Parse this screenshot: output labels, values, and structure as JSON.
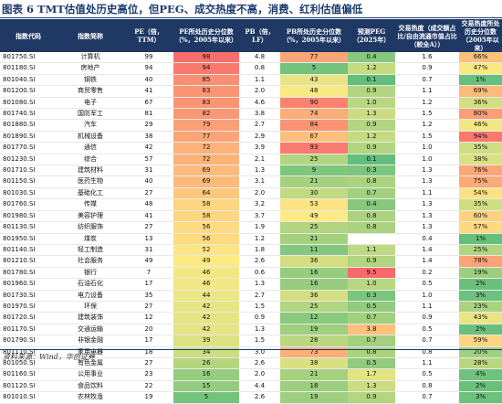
{
  "title": "图表 6 TMT估值处历史高位，但PEG、成交热度不高，消费、红利估值偏低",
  "source": "资料来源：Wind，华创证券",
  "headers": [
    "指数代码",
    "指数简称",
    "PE（倍，TTM）",
    "PE所处历史分位数（%，2005年以来）",
    "PB（倍，LF）",
    "PB所处历史分位数（%，2005年以来）",
    "预测PEG（2025年）",
    "交易热度（成交额占比/自由流通市值占比（較全A））",
    "交易热度所处历史分位数（2005年以来）"
  ],
  "rows": [
    {
      "code": "801750.SI",
      "name": "计算机",
      "pe": "99",
      "pe_pct": "98",
      "pb": "4.8",
      "pb_pct": "77",
      "peg": "0.4",
      "heat": "1.6",
      "heat_pct": "66%"
    },
    {
      "code": "801180.SI",
      "name": "房地产",
      "pe": "94",
      "pe_pct": "94",
      "pb": "0.8",
      "pb_pct": "5",
      "peg": "1.2",
      "heat": "0.9",
      "heat_pct": "47%"
    },
    {
      "code": "801040.SI",
      "name": "钢铁",
      "pe": "40",
      "pe_pct": "85",
      "pb": "1.1",
      "pb_pct": "43",
      "peg": "0.1",
      "heat": "0.7",
      "heat_pct": "1%"
    },
    {
      "code": "801200.SI",
      "name": "商贸零售",
      "pe": "41",
      "pe_pct": "83",
      "pb": "2.0",
      "pb_pct": "48",
      "peg": "0.9",
      "heat": "1.1",
      "heat_pct": "69%"
    },
    {
      "code": "801080.SI",
      "name": "电子",
      "pe": "67",
      "pe_pct": "83",
      "pb": "4.6",
      "pb_pct": "90",
      "peg": "1.0",
      "heat": "1.2",
      "heat_pct": "36%"
    },
    {
      "code": "801740.SI",
      "name": "国防军工",
      "pe": "81",
      "pe_pct": "82",
      "pb": "3.8",
      "pb_pct": "74",
      "peg": "1.3",
      "heat": "1.5",
      "heat_pct": "80%"
    },
    {
      "code": "801880.SI",
      "name": "汽车",
      "pe": "29",
      "pe_pct": "79",
      "pb": "2.7",
      "pb_pct": "84",
      "peg": "0.9",
      "heat": "1.2",
      "heat_pct": "46%"
    },
    {
      "code": "801890.SI",
      "name": "机械设备",
      "pe": "38",
      "pe_pct": "77",
      "pb": "2.9",
      "pb_pct": "67",
      "peg": "1.2",
      "heat": "1.5",
      "heat_pct": "94%"
    },
    {
      "code": "801770.SI",
      "name": "通信",
      "pe": "42",
      "pe_pct": "72",
      "pb": "3.9",
      "pb_pct": "93",
      "peg": "0.9",
      "heat": "1.0",
      "heat_pct": "35%"
    },
    {
      "code": "801230.SI",
      "name": "综合",
      "pe": "57",
      "pe_pct": "72",
      "pb": "2.1",
      "pb_pct": "25",
      "peg": "0.1",
      "heat": "1.0",
      "heat_pct": "38%"
    },
    {
      "code": "801710.SI",
      "name": "建筑材料",
      "pe": "31",
      "pe_pct": "69",
      "pb": "1.3",
      "pb_pct": "9",
      "peg": "0.3",
      "heat": "1.3",
      "heat_pct": "76%"
    },
    {
      "code": "801150.SI",
      "name": "医药生物",
      "pe": "40",
      "pe_pct": "69",
      "pb": "3.1",
      "pb_pct": "21",
      "peg": "0.8",
      "heat": "1.3",
      "heat_pct": "75%"
    },
    {
      "code": "801030.SI",
      "name": "基础化工",
      "pe": "27",
      "pe_pct": "64",
      "pb": "2.0",
      "pb_pct": "30",
      "peg": "0.7",
      "heat": "1.1",
      "heat_pct": "54%"
    },
    {
      "code": "801760.SI",
      "name": "传媒",
      "pe": "48",
      "pe_pct": "58",
      "pb": "3.2",
      "pb_pct": "53",
      "peg": "0.4",
      "heat": "1.3",
      "heat_pct": "35%"
    },
    {
      "code": "801980.SI",
      "name": "美容护理",
      "pe": "41",
      "pe_pct": "58",
      "pb": "3.7",
      "pb_pct": "49",
      "peg": "0.8",
      "heat": "1.3",
      "heat_pct": "60%"
    },
    {
      "code": "801130.SI",
      "name": "纺织服饰",
      "pe": "27",
      "pe_pct": "56",
      "pb": "1.9",
      "pb_pct": "25",
      "peg": "0.8",
      "heat": "1.3",
      "heat_pct": "57%"
    },
    {
      "code": "801950.SI",
      "name": "煤炭",
      "pe": "13",
      "pe_pct": "56",
      "pb": "1.2",
      "pb_pct": "21",
      "peg": "",
      "heat": "0.4",
      "heat_pct": "1%"
    },
    {
      "code": "801140.SI",
      "name": "轻工制造",
      "pe": "31",
      "pe_pct": "52",
      "pb": "1.8",
      "pb_pct": "11",
      "peg": "1.1",
      "heat": "1.4",
      "heat_pct": "25%"
    },
    {
      "code": "801210.SI",
      "name": "社会服务",
      "pe": "49",
      "pe_pct": "49",
      "pb": "2.6",
      "pb_pct": "36",
      "peg": "0.9",
      "heat": "1.4",
      "heat_pct": "78%"
    },
    {
      "code": "801780.SI",
      "name": "银行",
      "pe": "7",
      "pe_pct": "46",
      "pb": "0.6",
      "pb_pct": "16",
      "peg": "9.5",
      "heat": "0.2",
      "heat_pct": "19%"
    },
    {
      "code": "801960.SI",
      "name": "石油石化",
      "pe": "17",
      "pe_pct": "46",
      "pb": "1.3",
      "pb_pct": "16",
      "peg": "1.0",
      "heat": "0.5",
      "heat_pct": "2%"
    },
    {
      "code": "801730.SI",
      "name": "电力设备",
      "pe": "35",
      "pe_pct": "44",
      "pb": "2.7",
      "pb_pct": "36",
      "peg": "0.3",
      "heat": "1.0",
      "heat_pct": "3%"
    },
    {
      "code": "801970.SI",
      "name": "环保",
      "pe": "27",
      "pe_pct": "42",
      "pb": "1.5",
      "pb_pct": "25",
      "peg": "0.5",
      "heat": "1.1",
      "heat_pct": "23%"
    },
    {
      "code": "801720.SI",
      "name": "建筑装饰",
      "pe": "12",
      "pe_pct": "42",
      "pb": "0.9",
      "pb_pct": "12",
      "peg": "0.7",
      "heat": "0.9",
      "heat_pct": "43%"
    },
    {
      "code": "801170.SI",
      "name": "交通运输",
      "pe": "20",
      "pe_pct": "42",
      "pb": "1.3",
      "pb_pct": "19",
      "peg": "3.8",
      "heat": "0.5",
      "heat_pct": "2%"
    },
    {
      "code": "801790.SI",
      "name": "非银金融",
      "pe": "17",
      "pe_pct": "39",
      "pb": "1.5",
      "pb_pct": "28",
      "peg": "0.7",
      "heat": "0.7",
      "heat_pct": "59%"
    },
    {
      "code": "801110.SI",
      "name": "家用电器",
      "pe": "18",
      "pe_pct": "34",
      "pb": "3.0",
      "pb_pct": "73",
      "peg": "0.8",
      "heat": "0.8",
      "heat_pct": "20%"
    },
    {
      "code": "801050.SI",
      "name": "有色金属",
      "pe": "27",
      "pe_pct": "26",
      "pb": "2.6",
      "pb_pct": "38",
      "peg": "0.5",
      "heat": "1.1",
      "heat_pct": "28%"
    },
    {
      "code": "801160.SI",
      "name": "公用事业",
      "pe": "23",
      "pe_pct": "16",
      "pb": "2.0",
      "pb_pct": "21",
      "peg": "1.7",
      "heat": "0.5",
      "heat_pct": "4%"
    },
    {
      "code": "801120.SI",
      "name": "食品饮料",
      "pe": "22",
      "pe_pct": "15",
      "pb": "4.4",
      "pb_pct": "18",
      "peg": "1.3",
      "heat": "0.8",
      "heat_pct": "2%"
    },
    {
      "code": "801010.SI",
      "name": "农林牧渔",
      "pe": "19",
      "pe_pct": "5",
      "pb": "2.6",
      "pb_pct": "19",
      "peg": "0.9",
      "heat": "0.7",
      "heat_pct": "3%"
    }
  ],
  "colors": {
    "header_bg": "#1f3864",
    "scale_red": "#f8696b",
    "scale_yellow": "#ffeb84",
    "scale_green": "#63be7b"
  }
}
